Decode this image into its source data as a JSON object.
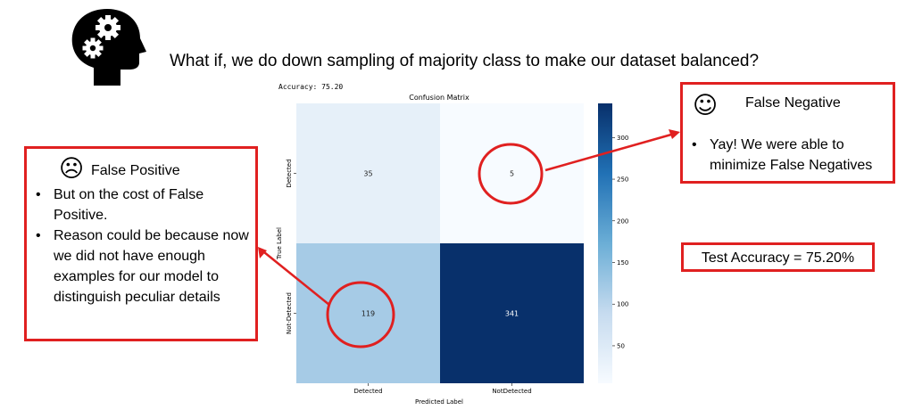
{
  "headline": "What if, we do down sampling of majority class to make our dataset balanced?",
  "accuracy_note": "Accuracy: 75.20",
  "colors": {
    "callout_border": "#e02020",
    "annotation": "#e02020",
    "cmap_low": "#f7fbff",
    "cmap_high": "#08306b"
  },
  "false_positive_box": {
    "face_icon": "frowning-face-icon",
    "title": "False Positive",
    "bullets": [
      "But on the cost of False Positive.",
      "Reason could be because now we did not have enough examples for our model to distinguish peculiar details"
    ]
  },
  "false_negative_box": {
    "face_icon": "smiling-face-icon",
    "title": "False Negative",
    "bullets": [
      "Yay! We were able to minimize False Negatives"
    ]
  },
  "test_accuracy": "Test Accuracy = 75.20%",
  "chart_data": {
    "type": "heatmap",
    "title": "Confusion Matrix",
    "xlabel": "Predicted Label",
    "ylabel": "True Label",
    "x_categories": [
      "Detected",
      "NotDetected"
    ],
    "y_categories": [
      "Detected",
      "Not-Detected"
    ],
    "values": [
      [
        35,
        5
      ],
      [
        119,
        341
      ]
    ],
    "colorbar": {
      "range": [
        5,
        341
      ],
      "ticks": [
        50,
        100,
        150,
        200,
        250,
        300
      ]
    }
  }
}
